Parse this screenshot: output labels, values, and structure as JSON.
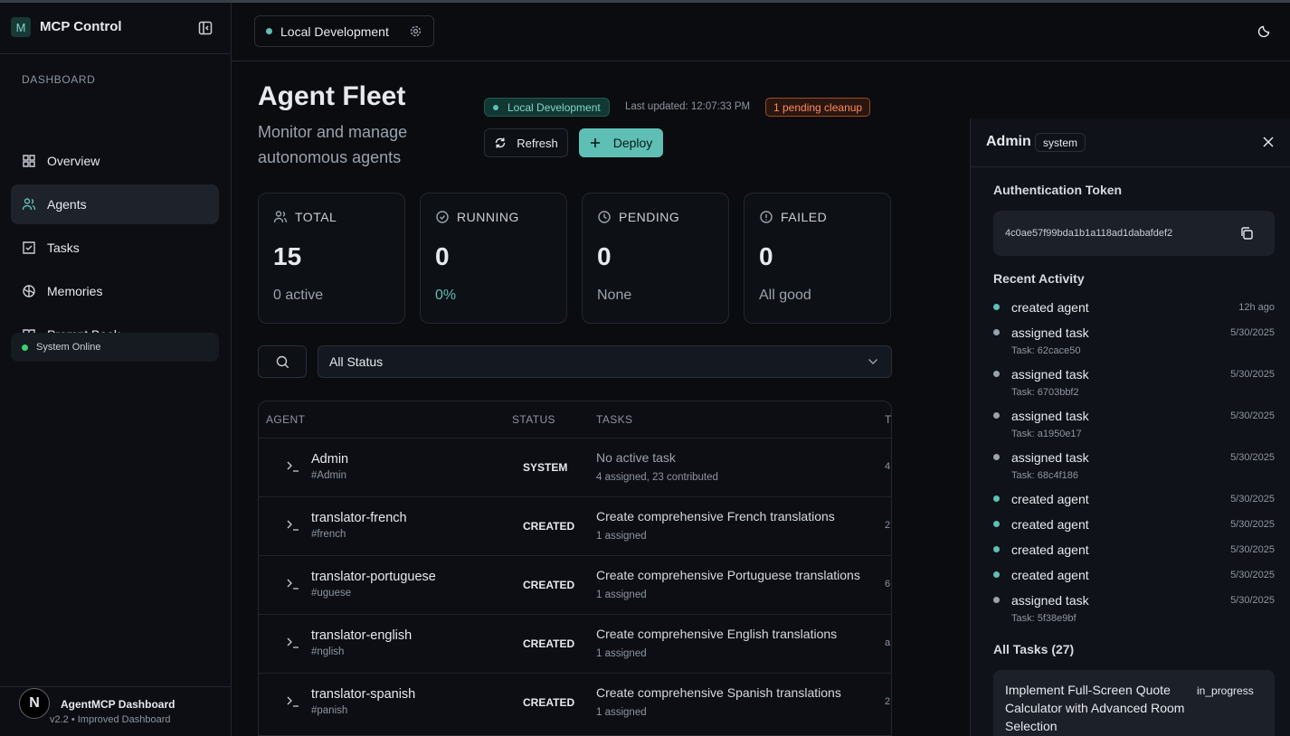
{
  "sidebar": {
    "brand_initial": "M",
    "brand": "MCP Control",
    "section": "DASHBOARD",
    "nav": [
      "Overview",
      "Agents",
      "Tasks",
      "Memories",
      "Prompt Book"
    ],
    "active_nav": 1,
    "status": "System Online",
    "footer": {
      "logo": "N",
      "title": "AgentMCP Dashboard",
      "version": "v2.2 • Improved Dashboard"
    }
  },
  "topbar": {
    "environment": "Local Development"
  },
  "header": {
    "title": "Agent Fleet",
    "subtitle": "Monitor and manage autonomous agents",
    "env_badge": "Local Development",
    "last_updated": "Last updated: 12:07:33 PM",
    "pending": "1 pending cleanup",
    "refresh": "Refresh",
    "deploy": "Deploy"
  },
  "stats": [
    {
      "label": "TOTAL",
      "value": "15",
      "sub": "0 active"
    },
    {
      "label": "RUNNING",
      "value": "0",
      "sub": "0%"
    },
    {
      "label": "PENDING",
      "value": "0",
      "sub": "None"
    },
    {
      "label": "FAILED",
      "value": "0",
      "sub": "All good"
    }
  ],
  "filter": {
    "status": "All Status"
  },
  "table": {
    "headers": [
      "AGENT",
      "STATUS",
      "TASKS",
      "T"
    ],
    "rows": [
      {
        "name": "Admin",
        "id": "#Admin",
        "status": "SYSTEM",
        "task": "No active task",
        "task_meta": "4 assigned, 23 contributed",
        "extra": "4"
      },
      {
        "name": "translator-french",
        "id": "#french",
        "status": "CREATED",
        "task": "Create comprehensive French translations",
        "task_meta": "1 assigned",
        "extra": "2"
      },
      {
        "name": "translator-portuguese",
        "id": "#uguese",
        "status": "CREATED",
        "task": "Create comprehensive Portuguese translations",
        "task_meta": "1 assigned",
        "extra": "6"
      },
      {
        "name": "translator-english",
        "id": "#nglish",
        "status": "CREATED",
        "task": "Create comprehensive English translations",
        "task_meta": "1 assigned",
        "extra": "a"
      },
      {
        "name": "translator-spanish",
        "id": "#panish",
        "status": "CREATED",
        "task": "Create comprehensive Spanish translations",
        "task_meta": "1 assigned",
        "extra": "2"
      }
    ]
  },
  "panel": {
    "title": "Admin",
    "badge": "system",
    "token_label": "Authentication Token",
    "token": "4c0ae57f99bda1b1a118ad1dabafdef2",
    "activity_title": "Recent Activity",
    "activities": [
      {
        "action": "created agent",
        "time": "12h ago",
        "dot": "#5fbfb5"
      },
      {
        "action": "assigned task",
        "detail": "Task: 62cace50",
        "time": "5/30/2025",
        "dot": "#9aa3ad"
      },
      {
        "action": "assigned task",
        "detail": "Task: 6703bbf2",
        "time": "5/30/2025",
        "dot": "#9aa3ad"
      },
      {
        "action": "assigned task",
        "detail": "Task: a1950e17",
        "time": "5/30/2025",
        "dot": "#9aa3ad"
      },
      {
        "action": "assigned task",
        "detail": "Task: 68c4f186",
        "time": "5/30/2025",
        "dot": "#9aa3ad"
      },
      {
        "action": "created agent",
        "time": "5/30/2025",
        "dot": "#5fbfb5"
      },
      {
        "action": "created agent",
        "time": "5/30/2025",
        "dot": "#5fbfb5"
      },
      {
        "action": "created agent",
        "time": "5/30/2025",
        "dot": "#5fbfb5"
      },
      {
        "action": "created agent",
        "time": "5/30/2025",
        "dot": "#5fbfb5"
      },
      {
        "action": "assigned task",
        "detail": "Task: 5f38e9bf",
        "time": "5/30/2025",
        "dot": "#9aa3ad"
      }
    ],
    "tasks_title": "All Tasks (27)",
    "task": {
      "title": "Implement Full-Screen Quote Calculator with Advanced Room Selection",
      "status": "in_progress"
    }
  }
}
